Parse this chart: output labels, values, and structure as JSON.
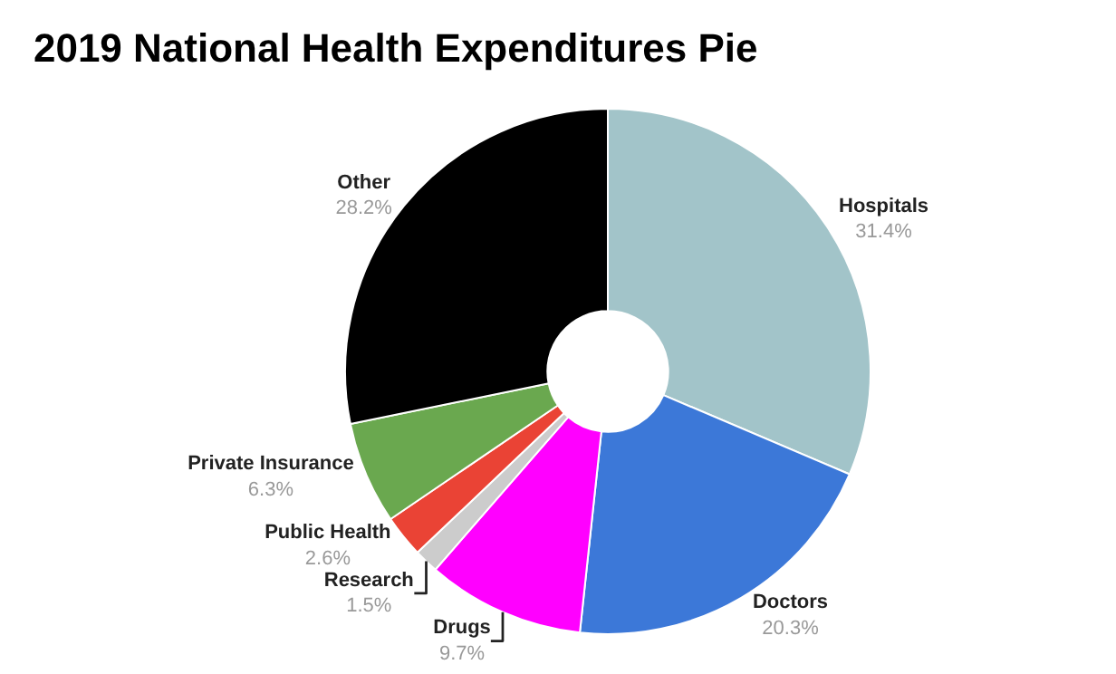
{
  "chart_data": {
    "type": "donut",
    "title": "2019 National Health Expenditures Pie",
    "categories": [
      "Hospitals",
      "Doctors",
      "Drugs",
      "Research",
      "Public Health",
      "Private Insurance",
      "Other"
    ],
    "values": [
      31.4,
      20.3,
      9.7,
      1.5,
      2.6,
      6.3,
      28.2
    ],
    "value_labels": [
      "31.4%",
      "20.3%",
      "9.7%",
      "1.5%",
      "2.6%",
      "6.3%",
      "28.2%"
    ],
    "colors": [
      "#a2c4c9",
      "#3c78d8",
      "#ff00ff",
      "#cccccc",
      "#ea4335",
      "#6aa84f",
      "#000000"
    ],
    "legend": false
  }
}
